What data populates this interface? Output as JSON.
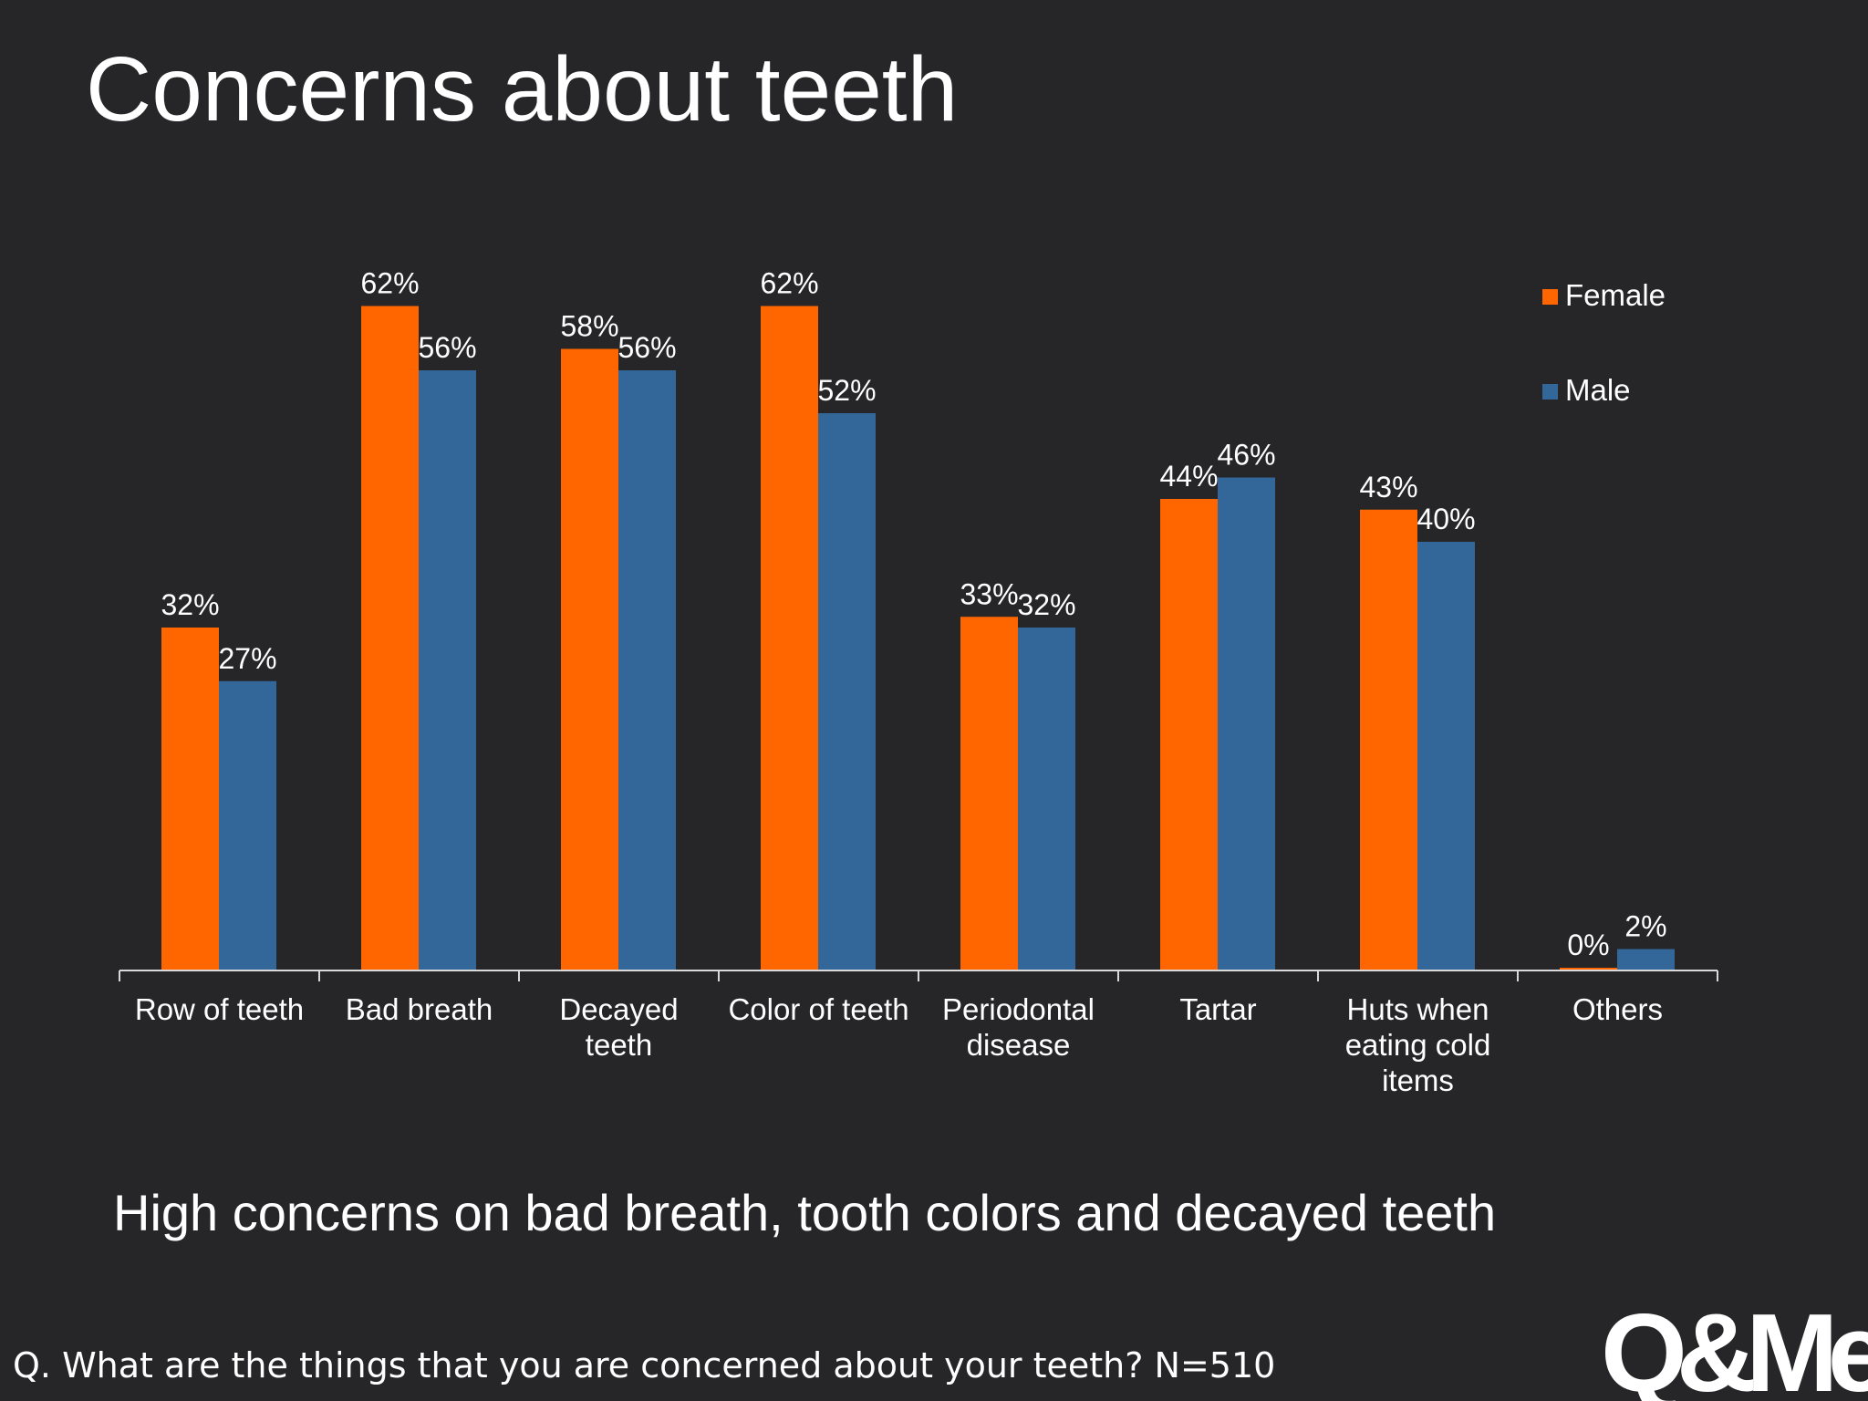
{
  "slide": {
    "title": "Concerns about teeth",
    "subtitle": "High concerns on bad breath, tooth colors and decayed teeth",
    "question": "Q. What are the things that you are concerned about your teeth? N=510",
    "logo_text": "Q&Me"
  },
  "chart_data": {
    "type": "bar",
    "title": "",
    "xlabel": "",
    "ylabel": "",
    "ylim": [
      0,
      70
    ],
    "grid": false,
    "legend_position": "top-right",
    "categories": [
      [
        "Row of teeth"
      ],
      [
        "Bad breath"
      ],
      [
        "Decayed",
        "teeth"
      ],
      [
        "Color of teeth"
      ],
      [
        "Periodontal",
        "disease"
      ],
      [
        "Tartar"
      ],
      [
        "Huts when",
        "eating cold",
        "items"
      ],
      [
        "Others"
      ]
    ],
    "series": [
      {
        "name": "Female",
        "color": "#ff6600",
        "values": [
          32,
          62,
          58,
          62,
          33,
          44,
          43,
          0
        ],
        "labels": [
          "32%",
          "62%",
          "58%",
          "62%",
          "33%",
          "44%",
          "43%",
          "0%"
        ]
      },
      {
        "name": "Male",
        "color": "#336699",
        "values": [
          27,
          56,
          56,
          52,
          32,
          46,
          40,
          2
        ],
        "labels": [
          "27%",
          "56%",
          "56%",
          "52%",
          "32%",
          "46%",
          "40%",
          "2%"
        ]
      }
    ]
  }
}
